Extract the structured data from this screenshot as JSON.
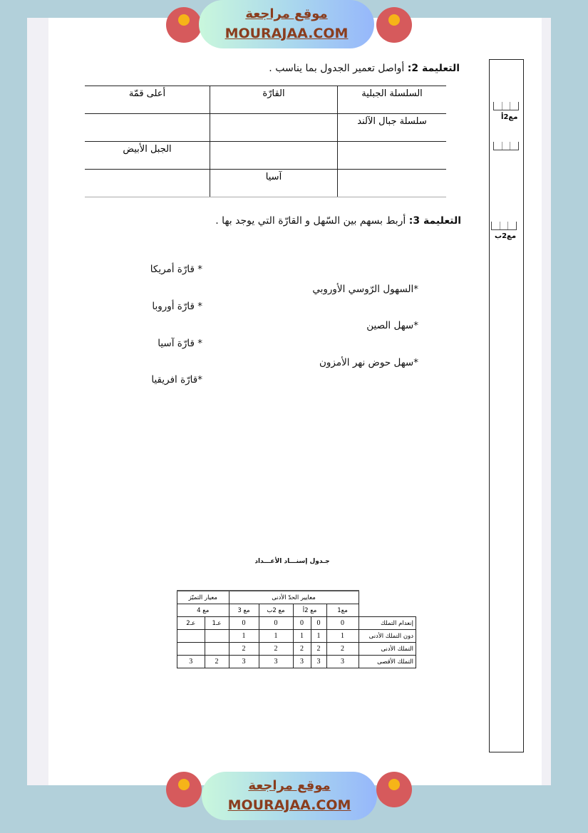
{
  "branding": {
    "arabic": "موقع مراجعة",
    "latin": "MOURAJAA.COM",
    "badge_text": "موقع مراجعة mourajaa.com",
    "colors": {
      "badge": "#d65a5c",
      "text": "#8a3d1e",
      "background": "#b2d0da"
    }
  },
  "instruction2": {
    "label": "التعليمة 2:",
    "text": "أواصل تعمير الجدول بما يناسب ."
  },
  "table1": {
    "headers": [
      "السلسلة الجبلية",
      "القارّة",
      "أعلى قمّة"
    ],
    "rows": [
      [
        "سلسلة جبال الآلند",
        "",
        ""
      ],
      [
        "",
        "",
        "الجبل الأبيض"
      ],
      [
        "",
        "آسيا",
        ""
      ]
    ]
  },
  "instruction3": {
    "label": "التعليمة 3:",
    "text": "أربط بسهم بين السّهل و القارّة التي يوجد بها ."
  },
  "plains": [
    "*السهول الرّوسي الأوروبي",
    "*سهل الصين",
    "*سهل حوض نهر الأمزون"
  ],
  "continents": [
    "* قارّة أمريكا",
    "* قارّة أوروبا",
    "* قارّة آسيا",
    "*قارّة افريقيا"
  ],
  "margin": {
    "labels": [
      "مع2أ",
      "مع2ب"
    ]
  },
  "grading": {
    "title": "جـدول إسنـــاد الأعـــداد",
    "group_headers": [
      "معايير الحدّ الأدنى",
      "معيار التميّز"
    ],
    "criteria": [
      "مع1",
      "مع 2أ",
      "مع 2ب",
      "مع 3",
      "مع 4"
    ],
    "sub": [
      "عـ1",
      "عـ2"
    ],
    "rows": [
      {
        "label": "إنعدام التملك",
        "values": [
          "0",
          "0",
          "0",
          "0",
          "0",
          "",
          ""
        ]
      },
      {
        "label": "دون التملك الأدنى",
        "values": [
          "1",
          "1",
          "1",
          "1",
          "1",
          "",
          ""
        ]
      },
      {
        "label": "التملك الأدنى",
        "values": [
          "2",
          "2",
          "2",
          "2",
          "2",
          "",
          ""
        ]
      },
      {
        "label": "التملك الأقصى",
        "values": [
          "3",
          "3",
          "3",
          "3",
          "3",
          "2",
          "3"
        ]
      }
    ]
  }
}
